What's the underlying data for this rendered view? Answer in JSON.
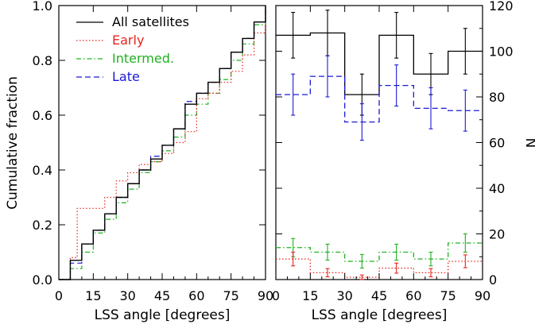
{
  "chart_data": [
    {
      "type": "line",
      "step": true,
      "xlabel": "LSS angle [degrees]",
      "ylabel": "Cumulative fraction",
      "xlim": [
        0,
        90
      ],
      "ylim": [
        0,
        1
      ],
      "xticks": [
        0,
        15,
        30,
        45,
        60,
        75,
        90
      ],
      "yticks": [
        0.0,
        0.2,
        0.4,
        0.6,
        0.8,
        1.0
      ],
      "xtick_labels": [
        "0",
        "15",
        "30",
        "45",
        "60",
        "75",
        "90"
      ],
      "ytick_labels": [
        "0.0",
        "0.2",
        "0.4",
        "0.6",
        "0.8",
        "1.0"
      ],
      "legend_position": "top-left",
      "series": [
        {
          "name": "All satellites",
          "color": "#000000",
          "dash": "solid",
          "x": [
            0,
            5,
            10,
            15,
            20,
            25,
            30,
            35,
            40,
            45,
            50,
            55,
            60,
            65,
            70,
            75,
            80,
            85,
            90
          ],
          "y": [
            0,
            0.07,
            0.13,
            0.18,
            0.24,
            0.3,
            0.35,
            0.4,
            0.44,
            0.49,
            0.55,
            0.64,
            0.68,
            0.72,
            0.77,
            0.83,
            0.88,
            0.94,
            1.0
          ]
        },
        {
          "name": "Early",
          "color": "#e8231e",
          "dash": "dotted",
          "x": [
            0,
            5,
            8,
            10,
            15,
            20,
            25,
            30,
            35,
            40,
            45,
            50,
            55,
            60,
            65,
            70,
            75,
            80,
            85,
            90
          ],
          "y": [
            0,
            0.08,
            0.26,
            0.26,
            0.26,
            0.3,
            0.36,
            0.39,
            0.42,
            0.43,
            0.46,
            0.5,
            0.54,
            0.66,
            0.68,
            0.72,
            0.76,
            0.82,
            0.9,
            1.0
          ]
        },
        {
          "name": "Intermed.",
          "color": "#1fb21f",
          "dash": "dashdot",
          "x": [
            0,
            5,
            10,
            15,
            20,
            25,
            30,
            35,
            40,
            45,
            50,
            55,
            60,
            65,
            70,
            75,
            80,
            85,
            90
          ],
          "y": [
            0,
            0.04,
            0.1,
            0.17,
            0.22,
            0.28,
            0.33,
            0.39,
            0.43,
            0.47,
            0.52,
            0.6,
            0.64,
            0.68,
            0.73,
            0.8,
            0.86,
            0.93,
            1.0
          ]
        },
        {
          "name": "Late",
          "color": "#1a1ad6",
          "dash": "dashed",
          "x": [
            0,
            5,
            10,
            15,
            20,
            25,
            30,
            35,
            40,
            45,
            50,
            55,
            60,
            65,
            70,
            75,
            80,
            85,
            90
          ],
          "y": [
            0,
            0.06,
            0.13,
            0.18,
            0.24,
            0.3,
            0.35,
            0.4,
            0.45,
            0.49,
            0.55,
            0.65,
            0.68,
            0.72,
            0.77,
            0.83,
            0.88,
            0.94,
            1.0
          ]
        }
      ]
    },
    {
      "type": "bar",
      "histogram_step": true,
      "xlabel": "LSS angle [degrees]",
      "ylabel": "N",
      "y_axis_side": "right",
      "xlim": [
        0,
        90
      ],
      "ylim": [
        0,
        120
      ],
      "xticks": [
        0,
        15,
        30,
        45,
        60,
        75,
        90
      ],
      "yticks": [
        0,
        20,
        40,
        60,
        80,
        100,
        120
      ],
      "xtick_labels": [
        "0",
        "15",
        "30",
        "45",
        "60",
        "75",
        "90"
      ],
      "ytick_labels": [
        "0",
        "20",
        "40",
        "60",
        "80",
        "100",
        "120"
      ],
      "bin_edges": [
        0,
        15,
        30,
        45,
        60,
        75,
        90
      ],
      "series": [
        {
          "name": "All satellites",
          "color": "#000000",
          "dash": "solid",
          "values": [
            107,
            108,
            81,
            107,
            90,
            100
          ],
          "errors": [
            10,
            10,
            9,
            10,
            9,
            10
          ]
        },
        {
          "name": "Late",
          "color": "#1a1ad6",
          "dash": "dashed",
          "values": [
            81,
            89,
            69,
            85,
            75,
            74
          ],
          "errors": [
            9,
            9,
            8,
            9,
            9,
            9
          ]
        },
        {
          "name": "Intermed.",
          "color": "#1fb21f",
          "dash": "dashdot",
          "values": [
            14,
            12,
            8,
            12,
            9,
            16
          ],
          "errors": [
            4,
            3.5,
            3,
            3.5,
            3,
            4
          ]
        },
        {
          "name": "Early",
          "color": "#e8231e",
          "dash": "dotted",
          "values": [
            9,
            3,
            1,
            5,
            3,
            8
          ],
          "errors": [
            3,
            1.8,
            1,
            2.2,
            1.8,
            2.8
          ]
        }
      ]
    }
  ]
}
